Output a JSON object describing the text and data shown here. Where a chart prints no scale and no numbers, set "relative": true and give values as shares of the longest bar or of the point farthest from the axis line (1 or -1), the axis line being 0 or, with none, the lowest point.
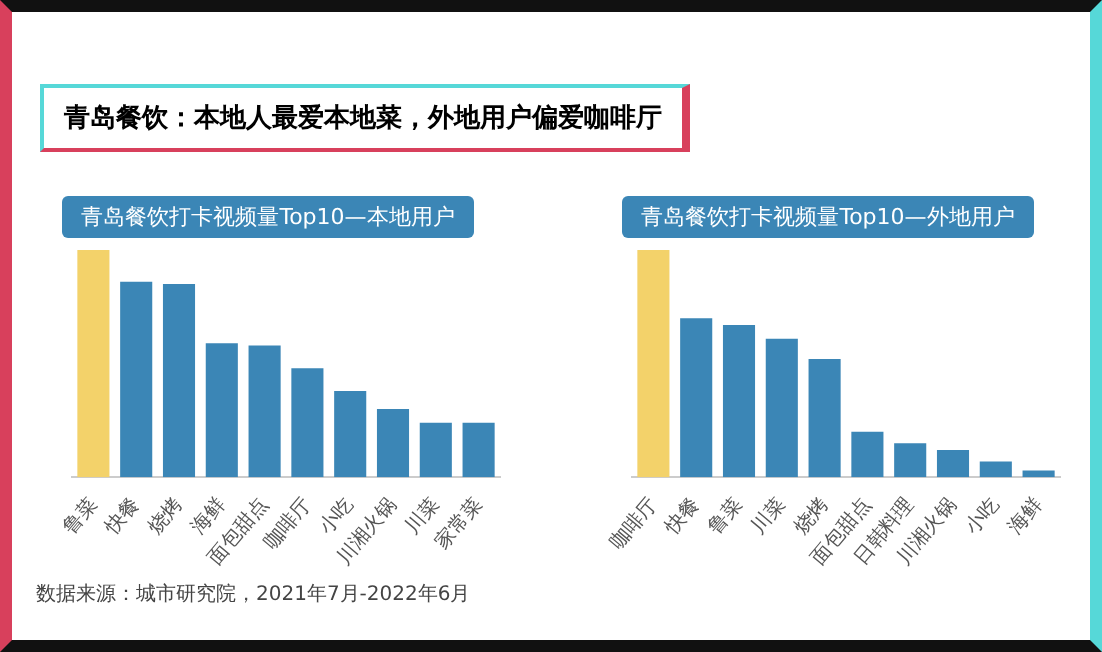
{
  "chart_data": [
    {
      "type": "bar",
      "title": "青岛餐饮打卡视频量Top10—本地用户",
      "relative": true,
      "categories": [
        "鲁菜",
        "快餐",
        "烧烤",
        "海鲜",
        "面包甜点",
        "咖啡厅",
        "小吃",
        "川湘火锅",
        "川菜",
        "家常菜"
      ],
      "values": [
        1,
        0.86,
        0.85,
        0.59,
        0.58,
        0.48,
        0.38,
        0.3,
        0.24,
        0.24
      ],
      "colors": [
        "#f3d26a",
        "#3b86b6",
        "#3b86b6",
        "#3b86b6",
        "#3b86b6",
        "#3b86b6",
        "#3b86b6",
        "#3b86b6",
        "#3b86b6",
        "#3b86b6"
      ],
      "annotations": [
        "青岛餐饮：本地人最爱本地菜，外地用户偏爱咖啡厅",
        "数据来源：城市研究院，2021年7月-2022年6月"
      ]
    },
    {
      "type": "bar",
      "title": "青岛餐饮打卡视频量Top10—外地用户",
      "relative": true,
      "categories": [
        "咖啡厅",
        "快餐",
        "鲁菜",
        "川菜",
        "烧烤",
        "面包甜点",
        "日韩料理",
        "川湘火锅",
        "小吃",
        "海鲜"
      ],
      "values": [
        1,
        0.7,
        0.67,
        0.61,
        0.52,
        0.2,
        0.15,
        0.12,
        0.07,
        0.03
      ],
      "colors": [
        "#f3d26a",
        "#3b86b6",
        "#3b86b6",
        "#3b86b6",
        "#3b86b6",
        "#3b86b6",
        "#3b86b6",
        "#3b86b6",
        "#3b86b6",
        "#3b86b6"
      ]
    }
  ]
}
